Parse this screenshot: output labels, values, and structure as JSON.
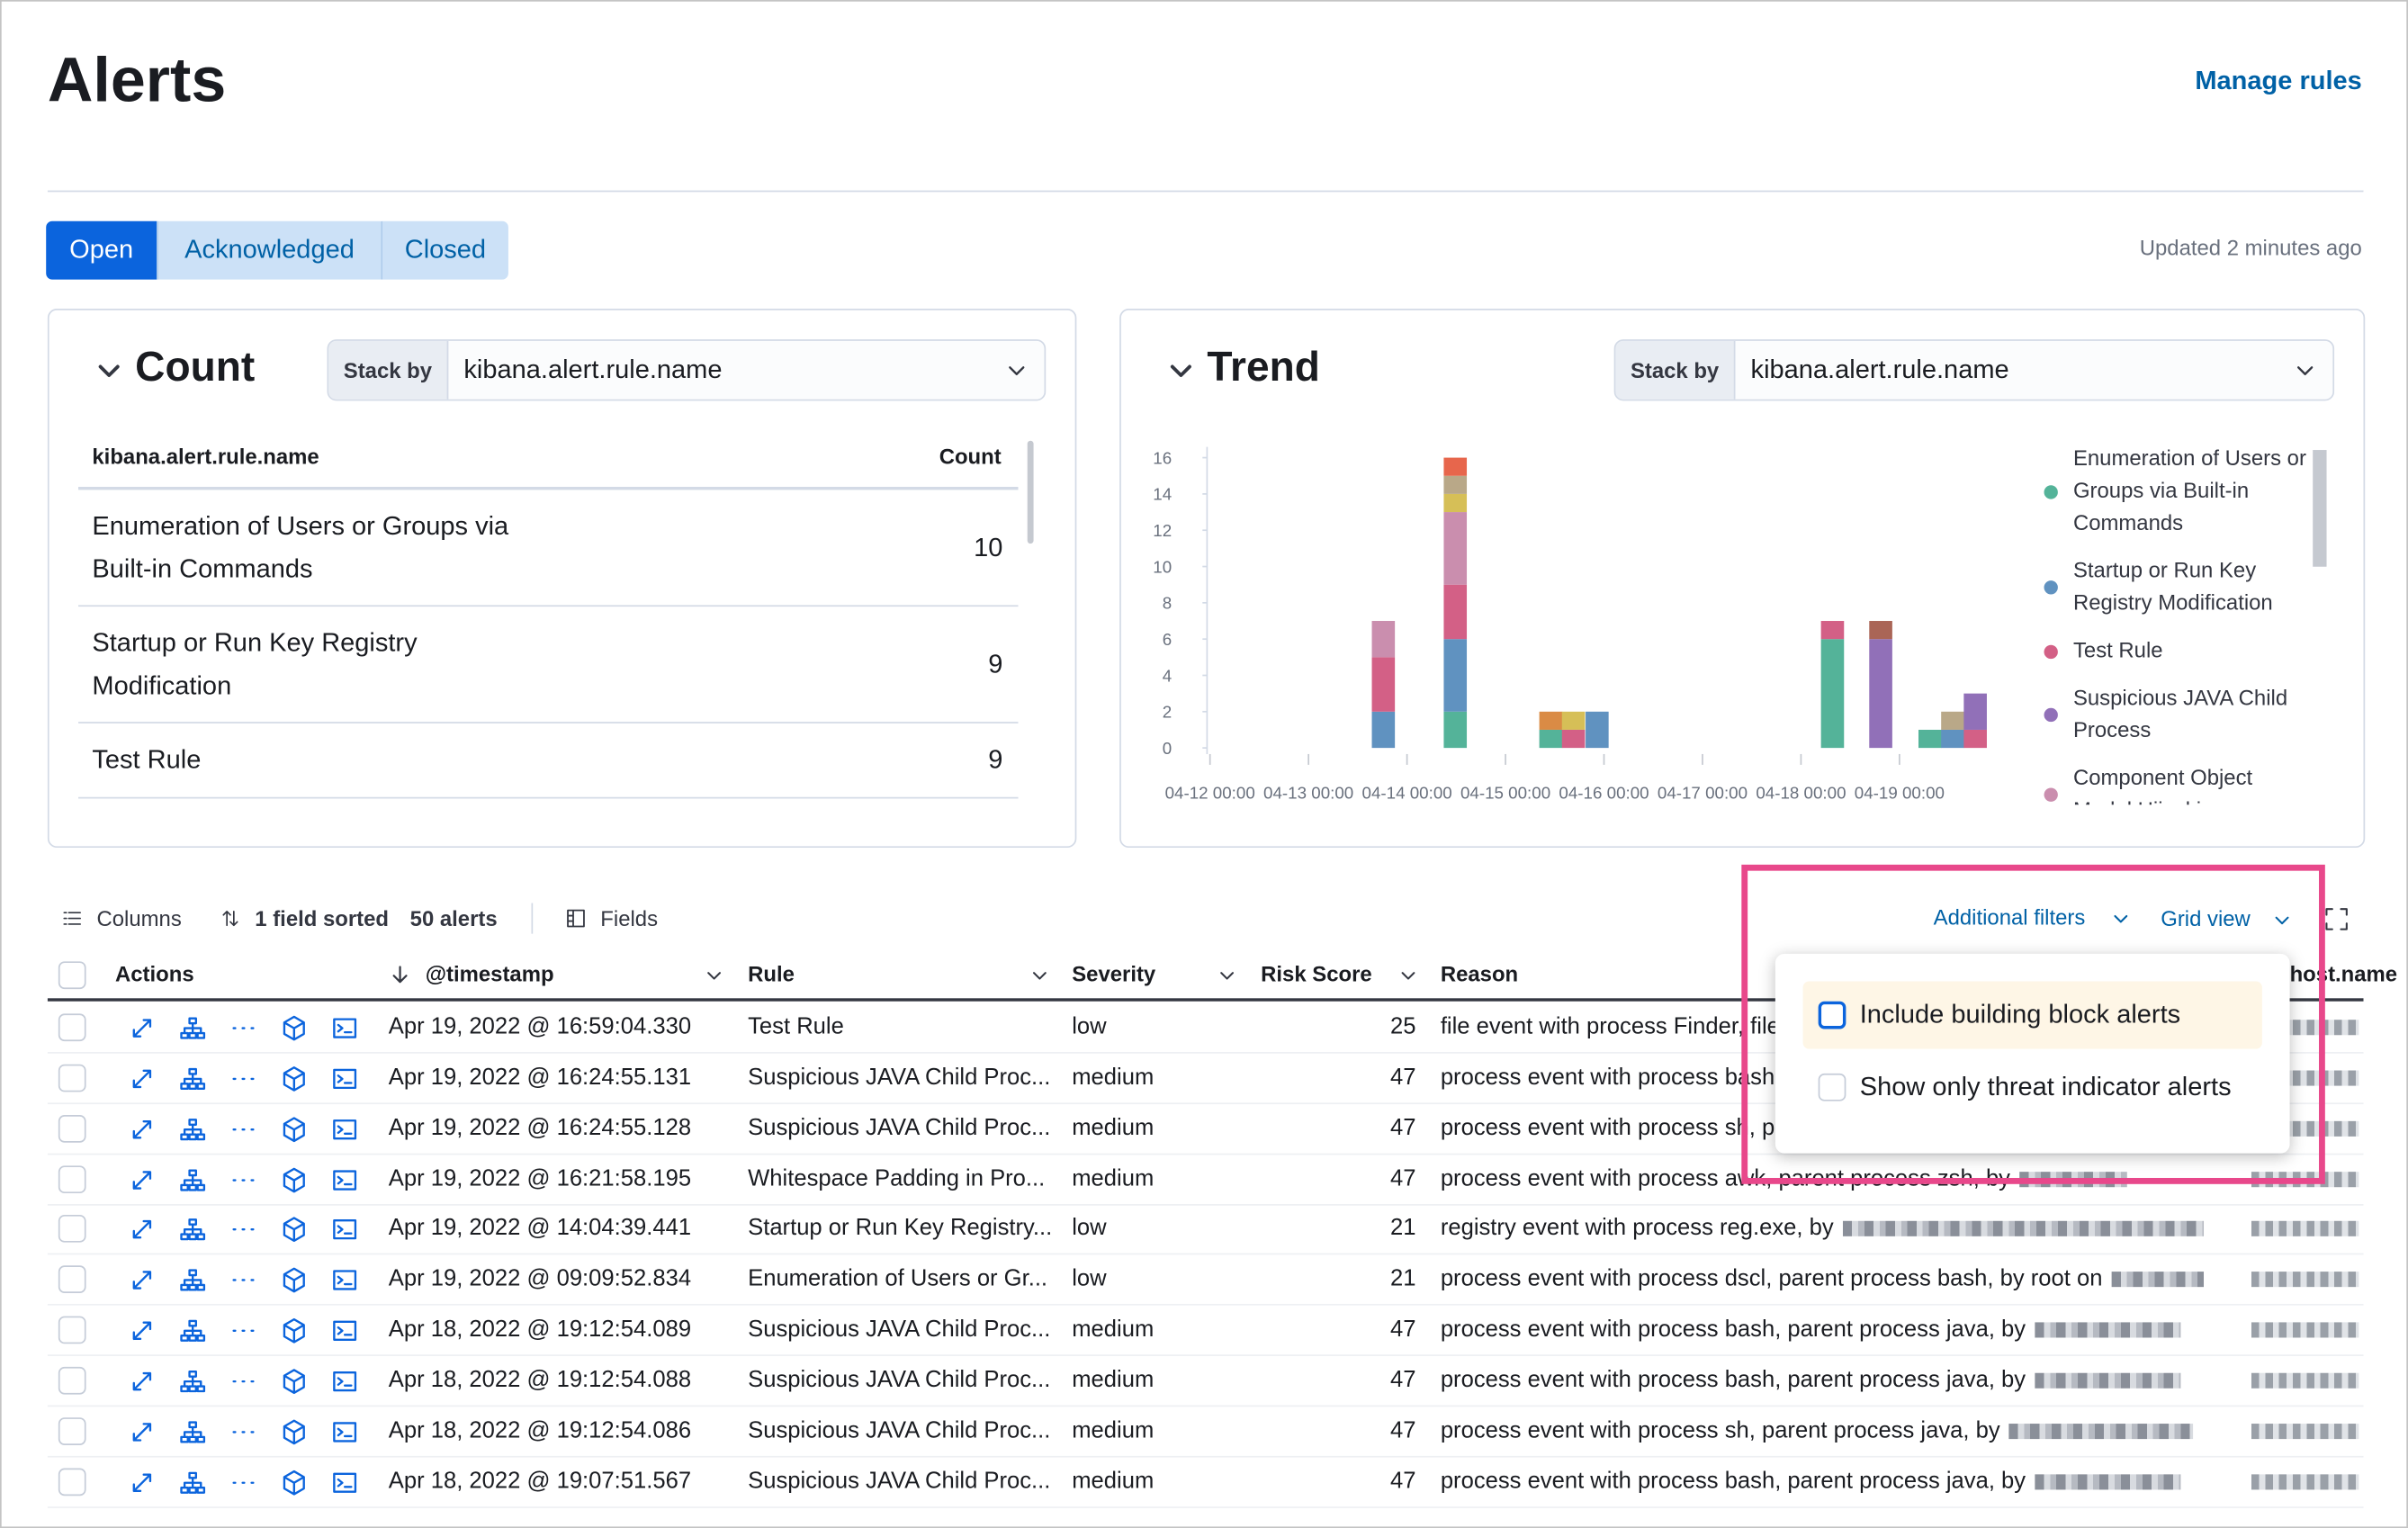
{
  "header": {
    "title": "Alerts",
    "manage_rules": "Manage rules"
  },
  "tabs": {
    "items": [
      "Open",
      "Acknowledged",
      "Closed"
    ],
    "updated": "Updated 2 minutes ago"
  },
  "count_panel": {
    "title": "Count",
    "stack_by_label": "Stack by",
    "stack_by_value": "kibana.alert.rule.name",
    "columns": [
      "kibana.alert.rule.name",
      "Count"
    ],
    "rows": [
      [
        "Enumeration of Users or Groups via Built-in Commands",
        10
      ],
      [
        "Startup or Run Key Registry Modification",
        9
      ],
      [
        "Test Rule",
        9
      ]
    ]
  },
  "trend_panel": {
    "title": "Trend",
    "stack_by_label": "Stack by",
    "stack_by_value": "kibana.alert.rule.name"
  },
  "chart_data": {
    "type": "bar",
    "stacked": true,
    "x": [
      13.76,
      14.49,
      15.46,
      15.69,
      15.93,
      18.32,
      18.81,
      19.31,
      19.54,
      19.77
    ],
    "xlim": [
      11.97,
      20
    ],
    "xticks": [
      {
        "value": 12,
        "label": "04-12 00:00"
      },
      {
        "value": 13,
        "label": "04-13 00:00"
      },
      {
        "value": 14,
        "label": "04-14 00:00"
      },
      {
        "value": 15,
        "label": "04-15 00:00"
      },
      {
        "value": 16,
        "label": "04-16 00:00"
      },
      {
        "value": 17,
        "label": "04-17 00:00"
      },
      {
        "value": 18,
        "label": "04-18 00:00"
      },
      {
        "value": 19,
        "label": "04-19 00:00"
      }
    ],
    "ylim": [
      0,
      16
    ],
    "yticks": [
      0,
      2,
      4,
      6,
      8,
      10,
      12,
      14,
      16
    ],
    "series": [
      {
        "name": "Enumeration of Users or Groups via Built-in Commands",
        "color": "#54b399",
        "values": [
          0,
          2,
          1,
          0,
          0,
          6,
          0,
          1,
          0,
          0
        ]
      },
      {
        "name": "Startup or Run Key Registry Modification",
        "color": "#6092c0",
        "values": [
          2,
          4,
          0,
          0,
          2,
          0,
          0,
          0,
          1,
          0
        ]
      },
      {
        "name": "Test Rule",
        "color": "#d36086",
        "values": [
          3,
          3,
          0,
          1,
          0,
          1,
          0,
          0,
          0,
          1
        ]
      },
      {
        "name": "Suspicious JAVA Child Process",
        "color": "#9170b8",
        "values": [
          0,
          0,
          0,
          0,
          0,
          0,
          6,
          0,
          0,
          2
        ]
      },
      {
        "name": "Component Object Model Hijacking",
        "color": "#ca8eae",
        "values": [
          2,
          4,
          0,
          0,
          0,
          0,
          0,
          0,
          0,
          0
        ]
      },
      {
        "name": null,
        "color": "#d6bf57",
        "values": [
          0,
          1,
          0,
          1,
          0,
          0,
          0,
          0,
          0,
          0
        ]
      },
      {
        "name": null,
        "color": "#b9a888",
        "values": [
          0,
          1,
          0,
          0,
          0,
          0,
          0,
          0,
          1,
          0
        ]
      },
      {
        "name": null,
        "color": "#da8b45",
        "values": [
          0,
          0,
          1,
          0,
          0,
          0,
          0,
          0,
          0,
          0
        ]
      },
      {
        "name": null,
        "color": "#e7664c",
        "values": [
          0,
          1,
          0,
          0,
          0,
          0,
          0,
          0,
          0,
          0
        ]
      },
      {
        "name": null,
        "color": "#aa6556",
        "values": [
          0,
          0,
          0,
          0,
          0,
          0,
          1,
          0,
          0,
          0
        ]
      }
    ]
  },
  "toolbar": {
    "columns": "Columns",
    "sorted": "1 field sorted",
    "alerts": "50 alerts",
    "fields": "Fields",
    "additional_filters": "Additional filters",
    "grid_view": "Grid view"
  },
  "filters_popover": {
    "options": [
      "Include building block alerts",
      "Show only threat indicator alerts"
    ]
  },
  "table": {
    "columns": [
      "Actions",
      "@timestamp",
      "Rule",
      "Severity",
      "Risk Score",
      "Reason",
      "host.name"
    ],
    "rows": [
      [
        "Apr 19, 2022 @ 16:59:04.330",
        "Test Rule",
        "low",
        25,
        "file event with process Finder, file"
      ],
      [
        "Apr 19, 2022 @ 16:24:55.131",
        "Suspicious JAVA Child Proc...",
        "medium",
        47,
        "process event with process bash, parent process java, by"
      ],
      [
        "Apr 19, 2022 @ 16:24:55.128",
        "Suspicious JAVA Child Proc...",
        "medium",
        47,
        "process event with process sh, parent process java, by"
      ],
      [
        "Apr 19, 2022 @ 16:21:58.195",
        "Whitespace Padding in Pro...",
        "medium",
        47,
        "process event with process awk, parent process zsh, by"
      ],
      [
        "Apr 19, 2022 @ 14:04:39.441",
        "Startup or Run Key Registry...",
        "low",
        21,
        "registry event with process reg.exe, by"
      ],
      [
        "Apr 19, 2022 @ 09:09:52.834",
        "Enumeration of Users or Gr...",
        "low",
        21,
        "process event with process dscl, parent process bash, by root on"
      ],
      [
        "Apr 18, 2022 @ 19:12:54.089",
        "Suspicious JAVA Child Proc...",
        "medium",
        47,
        "process event with process bash, parent process java, by"
      ],
      [
        "Apr 18, 2022 @ 19:12:54.088",
        "Suspicious JAVA Child Proc...",
        "medium",
        47,
        "process event with process bash, parent process java, by"
      ],
      [
        "Apr 18, 2022 @ 19:12:54.086",
        "Suspicious JAVA Child Proc...",
        "medium",
        47,
        "process event with process sh, parent process java, by"
      ],
      [
        "Apr 18, 2022 @ 19:07:51.567",
        "Suspicious JAVA Child Proc...",
        "medium",
        47,
        "process event with process bash, parent process java, by"
      ]
    ]
  }
}
